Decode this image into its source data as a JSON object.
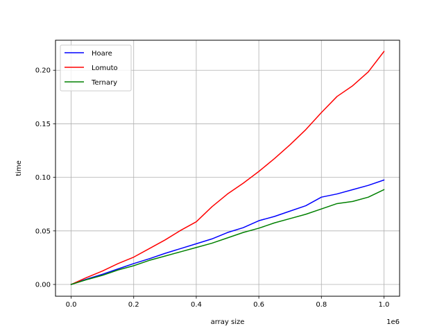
{
  "chart_data": {
    "type": "line",
    "title": "",
    "xlabel": "array size",
    "ylabel": "time",
    "x_offset_label": "1e6",
    "xlim": [
      -0.05,
      1.05
    ],
    "ylim": [
      -0.011,
      0.228
    ],
    "x_ticks": [
      0.0,
      0.2,
      0.4,
      0.6,
      0.8,
      1.0
    ],
    "x_tick_labels": [
      "0.0",
      "0.2",
      "0.4",
      "0.6",
      "0.8",
      "1.0"
    ],
    "y_ticks": [
      0.0,
      0.05,
      0.1,
      0.15,
      0.2
    ],
    "y_tick_labels": [
      "0.00",
      "0.05",
      "0.10",
      "0.15",
      "0.20"
    ],
    "grid": true,
    "legend_position": "upper left",
    "x": [
      0.0,
      0.05,
      0.1,
      0.15,
      0.2,
      0.25,
      0.3,
      0.35,
      0.4,
      0.45,
      0.5,
      0.55,
      0.6,
      0.65,
      0.7,
      0.75,
      0.8,
      0.85,
      0.9,
      0.95,
      1.0
    ],
    "series": [
      {
        "name": "Hoare",
        "color": "#0000ff",
        "values": [
          0.0,
          0.005,
          0.0095,
          0.0145,
          0.0195,
          0.024,
          0.029,
          0.0335,
          0.038,
          0.0425,
          0.0485,
          0.053,
          0.0595,
          0.0635,
          0.0685,
          0.0735,
          0.0815,
          0.0845,
          0.0885,
          0.0925,
          0.0975
        ]
      },
      {
        "name": "Lomuto",
        "color": "#ff0000",
        "values": [
          0.0,
          0.0065,
          0.0125,
          0.0195,
          0.0255,
          0.0335,
          0.0415,
          0.0505,
          0.0585,
          0.0725,
          0.0845,
          0.0945,
          0.1055,
          0.1175,
          0.1305,
          0.1445,
          0.1605,
          0.1755,
          0.1855,
          0.1985,
          0.2175
        ]
      },
      {
        "name": "Ternary",
        "color": "#008000",
        "values": [
          0.0,
          0.0045,
          0.0085,
          0.0135,
          0.0175,
          0.0225,
          0.0265,
          0.0305,
          0.0345,
          0.0385,
          0.0435,
          0.0485,
          0.0525,
          0.0575,
          0.0615,
          0.0655,
          0.0705,
          0.0755,
          0.0775,
          0.0815,
          0.0885
        ]
      }
    ]
  }
}
